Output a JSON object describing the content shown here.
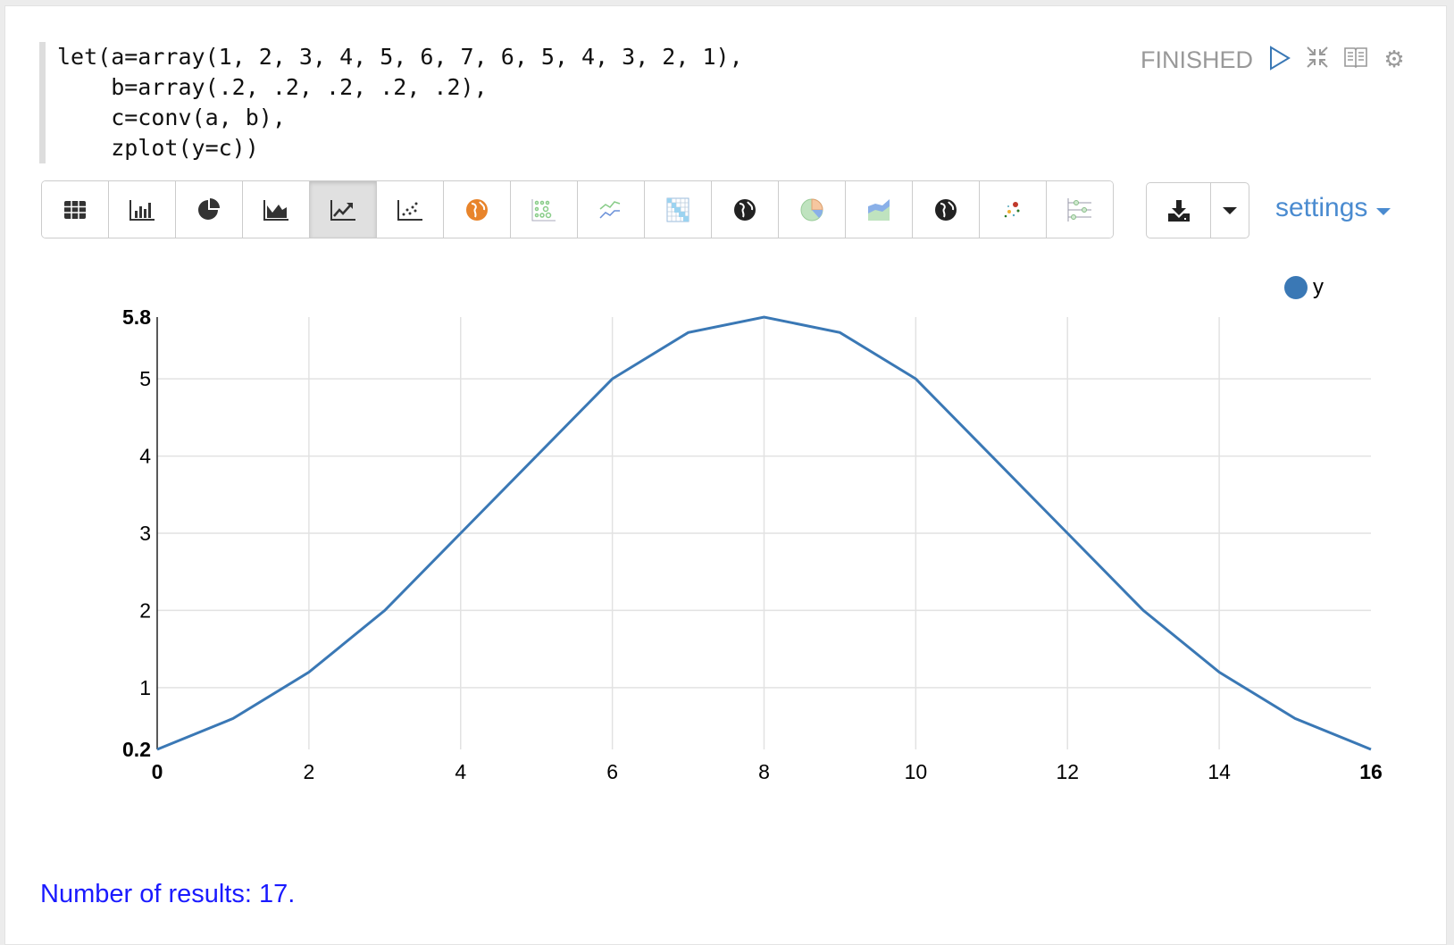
{
  "paragraph": {
    "code_lines": [
      "let(a=array(1, 2, 3, 4, 5, 6, 7, 6, 5, 4, 3, 2, 1),",
      "    b=array(.2, .2, .2, .2, .2),",
      "    c=conv(a, b),",
      "    zplot(y=c))"
    ],
    "status": "FINISHED",
    "header_icons": [
      "play-icon",
      "collapse-icon",
      "book-icon",
      "gear-icon"
    ]
  },
  "toolbar": {
    "buttons": [
      "table",
      "bar-chart",
      "pie-chart",
      "area-chart",
      "line-chart",
      "scatter-chart",
      "map",
      "bubble-grid",
      "multi-line",
      "heatmap",
      "globe",
      "pie",
      "stacked-area",
      "globe-dark",
      "dots",
      "sliders"
    ],
    "active": "line-chart",
    "download_icon": "download-icon",
    "settings_label": "settings"
  },
  "chart_data": {
    "type": "line",
    "x": [
      0,
      1,
      2,
      3,
      4,
      5,
      6,
      7,
      8,
      9,
      10,
      11,
      12,
      13,
      14,
      15,
      16
    ],
    "series": [
      {
        "name": "y",
        "values": [
          0.2,
          0.6,
          1.2,
          2,
          3,
          4,
          5,
          5.6,
          5.8,
          5.6,
          5,
          4,
          3,
          2,
          1.2,
          0.6,
          0.2
        ],
        "color": "#3a78b5"
      }
    ],
    "xlim": [
      0,
      16
    ],
    "ylim": [
      0.2,
      5.8
    ],
    "xticks": [
      "0",
      "2",
      "4",
      "6",
      "8",
      "10",
      "12",
      "14",
      "16"
    ],
    "yticks": [
      "0.2",
      "1",
      "2",
      "3",
      "4",
      "5",
      "5.8"
    ],
    "grid": true,
    "legend": "top-right"
  },
  "footer": {
    "results_text": "Number of results: 17."
  }
}
